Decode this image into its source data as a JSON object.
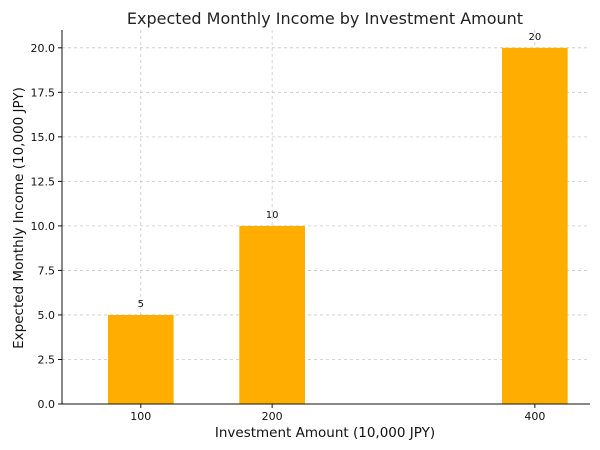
{
  "chart_data": {
    "type": "bar",
    "title": "Expected Monthly Income by Investment Amount",
    "xlabel": "Investment Amount (10,000 JPY)",
    "ylabel": "Expected Monthly Income (10,000 JPY)",
    "x": [
      100,
      200,
      400
    ],
    "x_tick_labels": [
      "100",
      "200",
      "400"
    ],
    "values": [
      5,
      10,
      20
    ],
    "data_labels": [
      "5",
      "10",
      "20"
    ],
    "xlim": [
      40,
      442
    ],
    "ylim": [
      0,
      21
    ],
    "y_ticks": [
      0.0,
      2.5,
      5.0,
      7.5,
      10.0,
      12.5,
      15.0,
      17.5,
      20.0
    ],
    "y_tick_labels": [
      "0.0",
      "2.5",
      "5.0",
      "7.5",
      "10.0",
      "12.5",
      "15.0",
      "17.5",
      "20.0"
    ],
    "bar_width": 50,
    "bar_color": "#ffae00",
    "grid": true,
    "legend": "none"
  }
}
